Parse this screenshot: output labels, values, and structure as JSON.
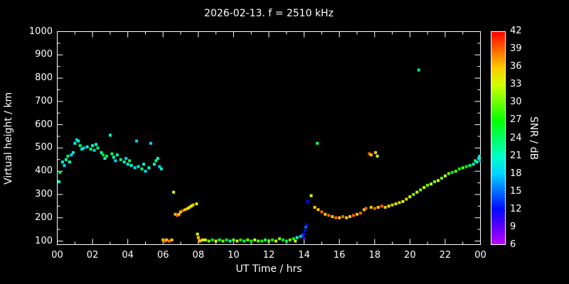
{
  "chart_data": {
    "type": "scatter",
    "title": "2026-02-13. f = 2510 kHz",
    "xlabel": "UT Time / hrs",
    "ylabel": "Virtual height / km",
    "colorbar_label": "SNR / dB",
    "xlim": [
      0,
      24
    ],
    "ylim": [
      100,
      1000
    ],
    "snr_range": [
      6,
      42
    ],
    "grid": false,
    "background": "#000000",
    "frame_color": "#ffffff",
    "xtick_values": [
      0,
      2,
      4,
      6,
      8,
      10,
      12,
      14,
      16,
      18,
      20,
      22,
      24
    ],
    "xtick_labels": [
      "00",
      "02",
      "04",
      "06",
      "08",
      "10",
      "12",
      "14",
      "16",
      "18",
      "20",
      "22",
      "00"
    ],
    "ytick_values": [
      100,
      200,
      300,
      400,
      500,
      600,
      700,
      800,
      900,
      1000
    ],
    "colorbar_ticks": [
      6,
      9,
      12,
      15,
      18,
      21,
      24,
      27,
      30,
      33,
      36,
      39,
      42
    ],
    "points_format": [
      "ut_hours",
      "virtual_height_km",
      "snr_db"
    ],
    "points": [
      [
        0.1,
        355,
        21
      ],
      [
        0.15,
        395,
        24
      ],
      [
        0.3,
        440,
        21
      ],
      [
        0.4,
        425,
        18
      ],
      [
        0.5,
        450,
        21
      ],
      [
        0.6,
        465,
        24
      ],
      [
        0.7,
        440,
        21
      ],
      [
        0.8,
        470,
        18
      ],
      [
        0.9,
        480,
        21
      ],
      [
        1.0,
        520,
        21
      ],
      [
        1.1,
        535,
        18
      ],
      [
        1.2,
        530,
        21
      ],
      [
        1.3,
        510,
        24
      ],
      [
        1.4,
        495,
        21
      ],
      [
        1.5,
        500,
        18
      ],
      [
        1.7,
        505,
        21
      ],
      [
        1.9,
        495,
        24
      ],
      [
        2.0,
        510,
        21
      ],
      [
        2.1,
        490,
        18
      ],
      [
        2.2,
        515,
        21
      ],
      [
        2.3,
        500,
        24
      ],
      [
        2.5,
        480,
        21
      ],
      [
        2.6,
        470,
        27
      ],
      [
        2.7,
        455,
        21
      ],
      [
        2.8,
        465,
        24
      ],
      [
        3.0,
        555,
        21
      ],
      [
        3.1,
        475,
        24
      ],
      [
        3.2,
        460,
        21
      ],
      [
        3.3,
        445,
        18
      ],
      [
        3.4,
        470,
        21
      ],
      [
        3.6,
        450,
        24
      ],
      [
        3.8,
        440,
        21
      ],
      [
        3.9,
        455,
        18
      ],
      [
        4.0,
        430,
        21
      ],
      [
        4.1,
        445,
        24
      ],
      [
        4.2,
        425,
        21
      ],
      [
        4.4,
        415,
        18
      ],
      [
        4.5,
        530,
        18
      ],
      [
        4.6,
        420,
        21
      ],
      [
        4.8,
        410,
        24
      ],
      [
        4.9,
        430,
        21
      ],
      [
        5.0,
        400,
        18
      ],
      [
        5.2,
        415,
        21
      ],
      [
        5.3,
        520,
        18
      ],
      [
        5.5,
        430,
        21
      ],
      [
        5.6,
        445,
        24
      ],
      [
        5.7,
        455,
        21
      ],
      [
        5.8,
        420,
        18
      ],
      [
        5.9,
        410,
        21
      ],
      [
        6.0,
        105,
        36
      ],
      [
        6.1,
        100,
        39
      ],
      [
        6.2,
        105,
        36
      ],
      [
        6.35,
        100,
        39
      ],
      [
        6.5,
        105,
        36
      ],
      [
        6.6,
        310,
        33
      ],
      [
        6.7,
        215,
        36
      ],
      [
        6.8,
        210,
        39
      ],
      [
        6.9,
        215,
        36
      ],
      [
        7.0,
        225,
        36
      ],
      [
        7.1,
        230,
        39
      ],
      [
        7.25,
        235,
        36
      ],
      [
        7.4,
        240,
        33
      ],
      [
        7.5,
        245,
        36
      ],
      [
        7.6,
        250,
        33
      ],
      [
        7.7,
        255,
        36
      ],
      [
        7.9,
        260,
        33
      ],
      [
        7.95,
        130,
        33
      ],
      [
        8.0,
        115,
        36
      ],
      [
        8.05,
        105,
        39
      ],
      [
        8.1,
        100,
        36
      ],
      [
        8.25,
        105,
        33
      ],
      [
        8.4,
        105,
        33
      ],
      [
        8.6,
        100,
        30
      ],
      [
        8.8,
        105,
        27
      ],
      [
        9.0,
        100,
        33
      ],
      [
        9.2,
        105,
        24
      ],
      [
        9.4,
        100,
        30
      ],
      [
        9.6,
        105,
        27
      ],
      [
        9.8,
        100,
        21
      ],
      [
        10.0,
        105,
        30
      ],
      [
        10.2,
        100,
        33
      ],
      [
        10.4,
        105,
        27
      ],
      [
        10.6,
        100,
        24
      ],
      [
        10.8,
        105,
        30
      ],
      [
        11.0,
        100,
        27
      ],
      [
        11.2,
        105,
        33
      ],
      [
        11.4,
        100,
        30
      ],
      [
        11.6,
        100,
        27
      ],
      [
        11.8,
        105,
        24
      ],
      [
        12.0,
        100,
        30
      ],
      [
        12.2,
        105,
        27
      ],
      [
        12.4,
        100,
        33
      ],
      [
        12.6,
        110,
        30
      ],
      [
        12.8,
        105,
        27
      ],
      [
        13.0,
        100,
        24
      ],
      [
        13.2,
        105,
        30
      ],
      [
        13.4,
        110,
        27
      ],
      [
        13.5,
        100,
        33
      ],
      [
        13.6,
        115,
        21
      ],
      [
        13.8,
        120,
        18
      ],
      [
        13.9,
        125,
        15
      ],
      [
        14.0,
        110,
        9
      ],
      [
        14.0,
        130,
        12
      ],
      [
        14.05,
        145,
        12
      ],
      [
        14.1,
        160,
        15
      ],
      [
        14.15,
        170,
        12
      ],
      [
        14.2,
        270,
        12
      ],
      [
        14.4,
        295,
        33
      ],
      [
        14.75,
        520,
        24
      ],
      [
        14.6,
        245,
        36
      ],
      [
        14.8,
        235,
        36
      ],
      [
        15.0,
        225,
        39
      ],
      [
        15.2,
        215,
        36
      ],
      [
        15.4,
        210,
        39
      ],
      [
        15.6,
        205,
        36
      ],
      [
        15.8,
        200,
        39
      ],
      [
        16.0,
        200,
        36
      ],
      [
        16.2,
        205,
        39
      ],
      [
        16.4,
        200,
        36
      ],
      [
        16.6,
        205,
        36
      ],
      [
        16.8,
        210,
        39
      ],
      [
        17.0,
        215,
        36
      ],
      [
        17.2,
        220,
        39
      ],
      [
        17.4,
        235,
        36
      ],
      [
        17.5,
        240,
        39
      ],
      [
        17.7,
        475,
        39
      ],
      [
        17.8,
        470,
        36
      ],
      [
        18.05,
        480,
        36
      ],
      [
        18.15,
        465,
        33
      ],
      [
        17.8,
        245,
        36
      ],
      [
        18.0,
        240,
        39
      ],
      [
        18.2,
        245,
        36
      ],
      [
        18.4,
        250,
        39
      ],
      [
        18.6,
        245,
        36
      ],
      [
        18.8,
        250,
        33
      ],
      [
        19.0,
        255,
        36
      ],
      [
        19.2,
        260,
        33
      ],
      [
        19.4,
        265,
        36
      ],
      [
        19.6,
        270,
        33
      ],
      [
        19.8,
        280,
        36
      ],
      [
        20.0,
        290,
        33
      ],
      [
        20.2,
        300,
        30
      ],
      [
        20.4,
        310,
        33
      ],
      [
        20.5,
        835,
        24
      ],
      [
        20.6,
        320,
        30
      ],
      [
        20.8,
        330,
        33
      ],
      [
        21.0,
        340,
        30
      ],
      [
        21.2,
        345,
        33
      ],
      [
        21.4,
        355,
        30
      ],
      [
        21.6,
        360,
        33
      ],
      [
        21.8,
        370,
        30
      ],
      [
        22.0,
        380,
        33
      ],
      [
        22.2,
        390,
        30
      ],
      [
        22.4,
        395,
        27
      ],
      [
        22.6,
        400,
        30
      ],
      [
        22.8,
        410,
        27
      ],
      [
        23.0,
        415,
        30
      ],
      [
        23.2,
        420,
        27
      ],
      [
        23.4,
        425,
        24
      ],
      [
        23.6,
        430,
        21
      ],
      [
        23.7,
        445,
        24
      ],
      [
        23.8,
        440,
        21
      ],
      [
        23.9,
        455,
        18
      ],
      [
        23.95,
        465,
        21
      ],
      [
        24.0,
        445,
        18
      ]
    ]
  }
}
